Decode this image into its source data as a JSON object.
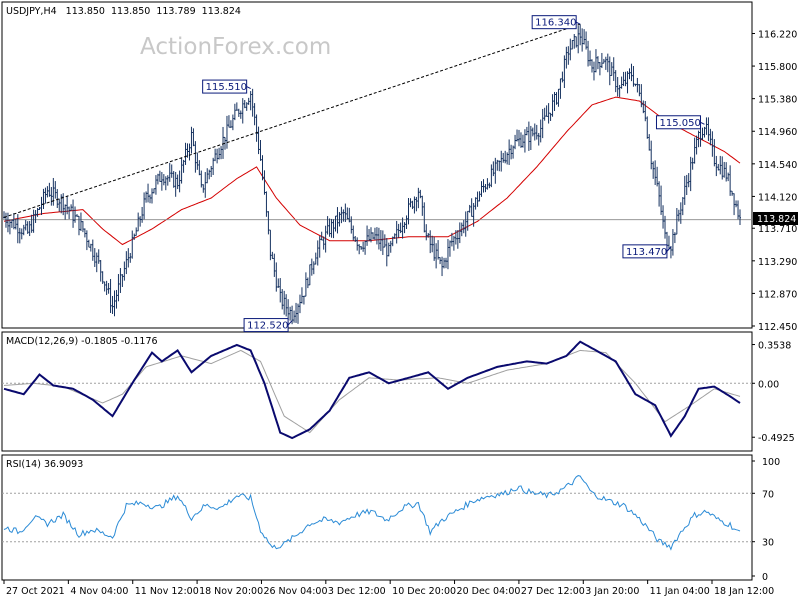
{
  "header": {
    "symbol": "USDJPY,H4",
    "open": "113.850",
    "high": "113.850",
    "low": "113.789",
    "close": "113.824"
  },
  "watermark": "ActionForex.com",
  "colors": {
    "candle": "#15315f",
    "ma": "#d40000",
    "trendline": "#000000",
    "macd": "#0a0a6e",
    "macd_signal": "#a0a0a0",
    "rsi": "#2b8bd6",
    "grid": "#a0a0a0",
    "frame": "#000000",
    "current_price_line": "#888888"
  },
  "x_axis": {
    "labels": [
      "27 Oct 2021",
      "4 Nov 04:00",
      "11 Nov 12:00",
      "18 Nov 20:00",
      "26 Nov 04:00",
      "3 Dec 12:00",
      "10 Dec 20:00",
      "20 Dec 04:00",
      "27 Dec 12:00",
      "3 Jan 20:00",
      "11 Jan 04:00",
      "18 Jan 12:00"
    ]
  },
  "price_axis": {
    "ticks": [
      "116.220",
      "115.800",
      "115.380",
      "114.960",
      "114.540",
      "114.120",
      "113.710",
      "113.290",
      "112.870",
      "112.450"
    ],
    "current": "113.824"
  },
  "annotations": [
    "116.340",
    "115.510",
    "115.050",
    "113.470",
    "112.520"
  ],
  "macd": {
    "label": "MACD(12,26,9) -0.1805 -0.1176",
    "ticks": [
      "0.3538",
      "0.00",
      "-0.4925"
    ]
  },
  "rsi": {
    "label": "RSI(14) 36.9093",
    "ticks": [
      "100",
      "70",
      "30",
      "0"
    ]
  },
  "chart_data": {
    "type": "candlestick",
    "symbol": "USDJPY",
    "timeframe": "H4",
    "ylim": [
      112.45,
      116.6
    ],
    "x_labels": [
      "27 Oct 2021",
      "4 Nov 04:00",
      "11 Nov 12:00",
      "18 Nov 20:00",
      "26 Nov 04:00",
      "3 Dec 12:00",
      "10 Dec 20:00",
      "20 Dec 04:00",
      "27 Dec 12:00",
      "3 Jan 20:00",
      "11 Jan 04:00",
      "18 Jan 12:00"
    ],
    "close_path": [
      [
        0,
        113.85
      ],
      [
        12,
        113.65
      ],
      [
        22,
        114.2
      ],
      [
        30,
        114.05
      ],
      [
        40,
        113.7
      ],
      [
        48,
        113.25
      ],
      [
        55,
        112.7
      ],
      [
        65,
        113.5
      ],
      [
        72,
        114.1
      ],
      [
        80,
        114.4
      ],
      [
        88,
        114.3
      ],
      [
        95,
        114.9
      ],
      [
        100,
        114.2
      ],
      [
        108,
        114.7
      ],
      [
        118,
        115.2
      ],
      [
        125,
        115.45
      ],
      [
        130,
        114.6
      ],
      [
        135,
        113.4
      ],
      [
        140,
        112.8
      ],
      [
        146,
        112.6
      ],
      [
        152,
        112.9
      ],
      [
        158,
        113.4
      ],
      [
        165,
        113.7
      ],
      [
        172,
        113.9
      ],
      [
        180,
        113.5
      ],
      [
        188,
        113.6
      ],
      [
        195,
        113.4
      ],
      [
        202,
        113.8
      ],
      [
        210,
        114.2
      ],
      [
        214,
        113.6
      ],
      [
        222,
        113.2
      ],
      [
        226,
        113.5
      ],
      [
        234,
        113.8
      ],
      [
        242,
        114.2
      ],
      [
        250,
        114.5
      ],
      [
        258,
        114.8
      ],
      [
        266,
        114.9
      ],
      [
        272,
        115.0
      ],
      [
        280,
        115.4
      ],
      [
        286,
        116.0
      ],
      [
        292,
        116.2
      ],
      [
        298,
        115.8
      ],
      [
        304,
        115.9
      ],
      [
        312,
        115.5
      ],
      [
        318,
        115.7
      ],
      [
        324,
        115.3
      ],
      [
        328,
        114.6
      ],
      [
        332,
        114.1
      ],
      [
        335,
        113.6
      ],
      [
        338,
        113.5
      ],
      [
        342,
        113.9
      ],
      [
        348,
        114.5
      ],
      [
        352,
        114.9
      ],
      [
        355,
        115.05
      ],
      [
        360,
        114.6
      ],
      [
        366,
        114.4
      ],
      [
        370,
        114.1
      ],
      [
        373,
        113.82
      ]
    ],
    "ma": [
      [
        0,
        113.8
      ],
      [
        20,
        113.9
      ],
      [
        40,
        113.95
      ],
      [
        50,
        113.7
      ],
      [
        60,
        113.5
      ],
      [
        75,
        113.7
      ],
      [
        90,
        113.95
      ],
      [
        105,
        114.1
      ],
      [
        118,
        114.35
      ],
      [
        128,
        114.5
      ],
      [
        138,
        114.1
      ],
      [
        150,
        113.75
      ],
      [
        165,
        113.55
      ],
      [
        185,
        113.55
      ],
      [
        205,
        113.6
      ],
      [
        225,
        113.6
      ],
      [
        240,
        113.8
      ],
      [
        255,
        114.1
      ],
      [
        270,
        114.5
      ],
      [
        285,
        114.95
      ],
      [
        298,
        115.3
      ],
      [
        310,
        115.4
      ],
      [
        322,
        115.35
      ],
      [
        335,
        115.1
      ],
      [
        350,
        114.9
      ],
      [
        365,
        114.7
      ],
      [
        373,
        114.55
      ]
    ],
    "trendline": [
      [
        0,
        113.85
      ],
      [
        292,
        116.34
      ]
    ],
    "labeled_levels": [
      {
        "label": "116.340",
        "x": 292,
        "y": 116.34
      },
      {
        "label": "115.510",
        "x": 125,
        "y": 115.51
      },
      {
        "label": "115.050",
        "x": 355,
        "y": 115.05
      },
      {
        "label": "113.470",
        "x": 338,
        "y": 113.47
      },
      {
        "label": "112.520",
        "x": 146,
        "y": 112.52
      }
    ],
    "macd_ylim": [
      -0.6,
      0.45
    ],
    "macd_line": [
      [
        0,
        -0.05
      ],
      [
        10,
        -0.1
      ],
      [
        18,
        0.08
      ],
      [
        25,
        -0.02
      ],
      [
        35,
        -0.05
      ],
      [
        45,
        -0.15
      ],
      [
        55,
        -0.3
      ],
      [
        65,
        0.0
      ],
      [
        75,
        0.28
      ],
      [
        80,
        0.2
      ],
      [
        88,
        0.3
      ],
      [
        95,
        0.1
      ],
      [
        105,
        0.25
      ],
      [
        118,
        0.35
      ],
      [
        125,
        0.3
      ],
      [
        132,
        0.0
      ],
      [
        140,
        -0.45
      ],
      [
        146,
        -0.5
      ],
      [
        155,
        -0.42
      ],
      [
        165,
        -0.25
      ],
      [
        175,
        0.05
      ],
      [
        185,
        0.1
      ],
      [
        195,
        0.0
      ],
      [
        205,
        0.05
      ],
      [
        215,
        0.1
      ],
      [
        225,
        -0.05
      ],
      [
        235,
        0.05
      ],
      [
        250,
        0.15
      ],
      [
        265,
        0.2
      ],
      [
        275,
        0.18
      ],
      [
        285,
        0.25
      ],
      [
        292,
        0.38
      ],
      [
        300,
        0.3
      ],
      [
        310,
        0.2
      ],
      [
        320,
        -0.1
      ],
      [
        330,
        -0.2
      ],
      [
        338,
        -0.48
      ],
      [
        345,
        -0.3
      ],
      [
        352,
        -0.05
      ],
      [
        360,
        -0.03
      ],
      [
        368,
        -0.12
      ],
      [
        373,
        -0.18
      ]
    ],
    "macd_signal": [
      [
        0,
        -0.02
      ],
      [
        15,
        0.0
      ],
      [
        30,
        -0.03
      ],
      [
        50,
        -0.18
      ],
      [
        60,
        -0.1
      ],
      [
        72,
        0.15
      ],
      [
        90,
        0.25
      ],
      [
        105,
        0.18
      ],
      [
        120,
        0.3
      ],
      [
        130,
        0.2
      ],
      [
        142,
        -0.3
      ],
      [
        155,
        -0.45
      ],
      [
        170,
        -0.15
      ],
      [
        185,
        0.05
      ],
      [
        200,
        0.03
      ],
      [
        220,
        0.05
      ],
      [
        235,
        0.0
      ],
      [
        255,
        0.12
      ],
      [
        275,
        0.18
      ],
      [
        292,
        0.3
      ],
      [
        305,
        0.28
      ],
      [
        320,
        0.0
      ],
      [
        335,
        -0.35
      ],
      [
        348,
        -0.2
      ],
      [
        360,
        -0.05
      ],
      [
        373,
        -0.12
      ]
    ],
    "rsi_ylim": [
      0,
      100
    ],
    "rsi_line": [
      [
        0,
        42
      ],
      [
        8,
        38
      ],
      [
        15,
        50
      ],
      [
        22,
        45
      ],
      [
        30,
        52
      ],
      [
        38,
        36
      ],
      [
        45,
        40
      ],
      [
        55,
        34
      ],
      [
        62,
        60
      ],
      [
        70,
        62
      ],
      [
        78,
        58
      ],
      [
        88,
        68
      ],
      [
        95,
        50
      ],
      [
        102,
        60
      ],
      [
        110,
        58
      ],
      [
        118,
        68
      ],
      [
        125,
        66
      ],
      [
        130,
        40
      ],
      [
        136,
        25
      ],
      [
        142,
        28
      ],
      [
        148,
        35
      ],
      [
        155,
        45
      ],
      [
        162,
        48
      ],
      [
        170,
        46
      ],
      [
        178,
        52
      ],
      [
        186,
        55
      ],
      [
        194,
        48
      ],
      [
        202,
        58
      ],
      [
        210,
        62
      ],
      [
        216,
        38
      ],
      [
        222,
        48
      ],
      [
        230,
        56
      ],
      [
        238,
        64
      ],
      [
        246,
        68
      ],
      [
        254,
        70
      ],
      [
        260,
        75
      ],
      [
        268,
        70
      ],
      [
        276,
        68
      ],
      [
        284,
        74
      ],
      [
        292,
        84
      ],
      [
        298,
        70
      ],
      [
        306,
        64
      ],
      [
        314,
        60
      ],
      [
        320,
        52
      ],
      [
        326,
        42
      ],
      [
        332,
        30
      ],
      [
        338,
        26
      ],
      [
        344,
        40
      ],
      [
        350,
        52
      ],
      [
        356,
        55
      ],
      [
        362,
        48
      ],
      [
        368,
        44
      ],
      [
        373,
        37
      ]
    ],
    "rsi_levels": [
      70,
      30
    ]
  }
}
